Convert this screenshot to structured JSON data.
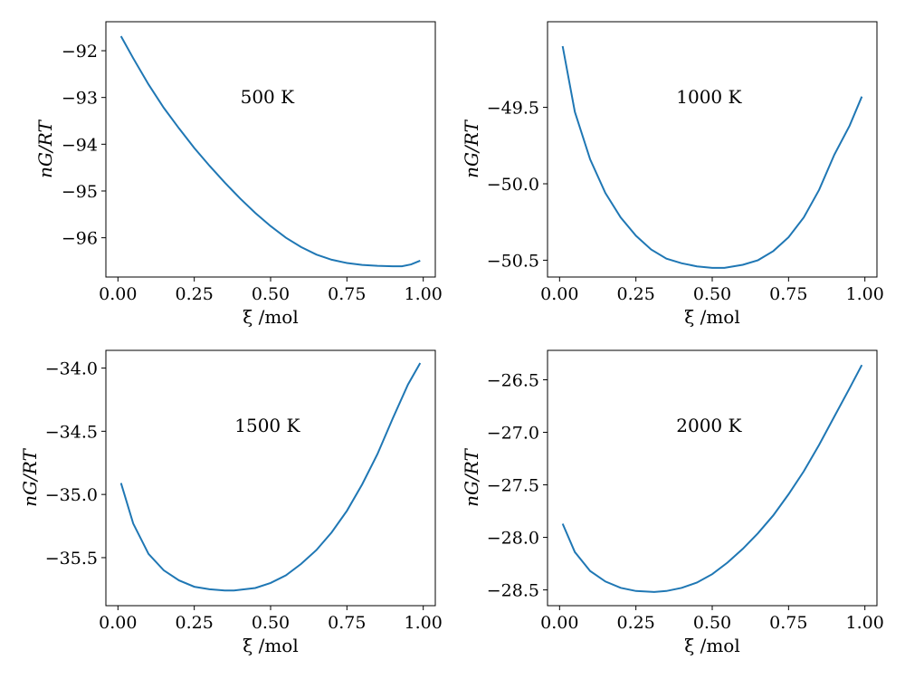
{
  "chart_data": [
    {
      "type": "line",
      "annotation": "500 K",
      "xlabel": "ξ /mol",
      "ylabel": "nG/RT",
      "xlim": [
        -0.0395,
        1.0395
      ],
      "ylim": [
        -96.84,
        -91.38
      ],
      "xticks": [
        0.0,
        0.25,
        0.5,
        0.75,
        1.0
      ],
      "xtick_labels": [
        "0.00",
        "0.25",
        "0.50",
        "0.75",
        "1.00"
      ],
      "yticks": [
        -92,
        -93,
        -94,
        -95,
        -96
      ],
      "ytick_labels": [
        "−92",
        "−93",
        "−94",
        "−95",
        "−96"
      ],
      "series": [
        {
          "name": "nG/RT",
          "color": "#1f77b4",
          "x": [
            0.01,
            0.05,
            0.1,
            0.15,
            0.2,
            0.25,
            0.3,
            0.35,
            0.4,
            0.45,
            0.5,
            0.55,
            0.6,
            0.65,
            0.7,
            0.75,
            0.8,
            0.85,
            0.9,
            0.93,
            0.96,
            0.99
          ],
          "y": [
            -91.69,
            -92.16,
            -92.72,
            -93.22,
            -93.66,
            -94.08,
            -94.46,
            -94.82,
            -95.16,
            -95.47,
            -95.75,
            -96.0,
            -96.2,
            -96.36,
            -96.47,
            -96.54,
            -96.58,
            -96.6,
            -96.61,
            -96.61,
            -96.57,
            -96.49
          ]
        }
      ]
    },
    {
      "type": "line",
      "annotation": "1000 K",
      "xlabel": "ξ /mol",
      "ylabel": "nG/RT",
      "xlim": [
        -0.0395,
        1.0395
      ],
      "ylim": [
        -50.61,
        -48.94
      ],
      "xticks": [
        0.0,
        0.25,
        0.5,
        0.75,
        1.0
      ],
      "xtick_labels": [
        "0.00",
        "0.25",
        "0.50",
        "0.75",
        "1.00"
      ],
      "yticks": [
        -49.5,
        -50.0,
        -50.5
      ],
      "ytick_labels": [
        "−49.5",
        "−50.0",
        "−50.5"
      ],
      "series": [
        {
          "name": "nG/RT",
          "color": "#1f77b4",
          "x": [
            0.01,
            0.05,
            0.1,
            0.15,
            0.2,
            0.25,
            0.3,
            0.35,
            0.4,
            0.45,
            0.5,
            0.54,
            0.6,
            0.65,
            0.7,
            0.75,
            0.8,
            0.85,
            0.9,
            0.95,
            0.99
          ],
          "y": [
            -49.1,
            -49.53,
            -49.84,
            -50.06,
            -50.22,
            -50.34,
            -50.43,
            -50.49,
            -50.52,
            -50.54,
            -50.55,
            -50.55,
            -50.53,
            -50.5,
            -50.44,
            -50.35,
            -50.22,
            -50.04,
            -49.81,
            -49.62,
            -49.43
          ]
        }
      ]
    },
    {
      "type": "line",
      "annotation": "1500 K",
      "xlabel": "ξ /mol",
      "ylabel": "nG/RT",
      "xlim": [
        -0.0395,
        1.0395
      ],
      "ylim": [
        -35.88,
        -33.86
      ],
      "xticks": [
        0.0,
        0.25,
        0.5,
        0.75,
        1.0
      ],
      "xtick_labels": [
        "0.00",
        "0.25",
        "0.50",
        "0.75",
        "1.00"
      ],
      "yticks": [
        -34.0,
        -34.5,
        -35.0,
        -35.5
      ],
      "ytick_labels": [
        "−34.0",
        "−34.5",
        "−35.0",
        "−35.5"
      ],
      "series": [
        {
          "name": "nG/RT",
          "color": "#1f77b4",
          "x": [
            0.01,
            0.05,
            0.1,
            0.15,
            0.2,
            0.25,
            0.3,
            0.35,
            0.38,
            0.45,
            0.5,
            0.55,
            0.6,
            0.65,
            0.7,
            0.75,
            0.8,
            0.85,
            0.9,
            0.95,
            0.99
          ],
          "y": [
            -34.91,
            -35.23,
            -35.47,
            -35.6,
            -35.68,
            -35.73,
            -35.75,
            -35.76,
            -35.76,
            -35.74,
            -35.7,
            -35.64,
            -35.55,
            -35.44,
            -35.3,
            -35.13,
            -34.92,
            -34.68,
            -34.4,
            -34.13,
            -33.96
          ]
        }
      ]
    },
    {
      "type": "line",
      "annotation": "2000 K",
      "xlabel": "ξ /mol",
      "ylabel": "nG/RT",
      "xlim": [
        -0.0395,
        1.0395
      ],
      "ylim": [
        -28.65,
        -26.22
      ],
      "xticks": [
        0.0,
        0.25,
        0.5,
        0.75,
        1.0
      ],
      "xtick_labels": [
        "0.00",
        "0.25",
        "0.50",
        "0.75",
        "1.00"
      ],
      "yticks": [
        -26.5,
        -27.0,
        -27.5,
        -28.0,
        -28.5
      ],
      "ytick_labels": [
        "−26.5",
        "−27.0",
        "−27.5",
        "−28.0",
        "−28.5"
      ],
      "series": [
        {
          "name": "nG/RT",
          "color": "#1f77b4",
          "x": [
            0.01,
            0.05,
            0.1,
            0.15,
            0.2,
            0.25,
            0.31,
            0.35,
            0.4,
            0.45,
            0.5,
            0.55,
            0.6,
            0.65,
            0.7,
            0.75,
            0.8,
            0.85,
            0.9,
            0.95,
            0.99
          ],
          "y": [
            -27.87,
            -28.14,
            -28.32,
            -28.42,
            -28.48,
            -28.51,
            -28.52,
            -28.51,
            -28.48,
            -28.43,
            -28.35,
            -28.24,
            -28.11,
            -27.96,
            -27.79,
            -27.59,
            -27.37,
            -27.12,
            -26.85,
            -26.58,
            -26.36
          ]
        }
      ]
    }
  ]
}
